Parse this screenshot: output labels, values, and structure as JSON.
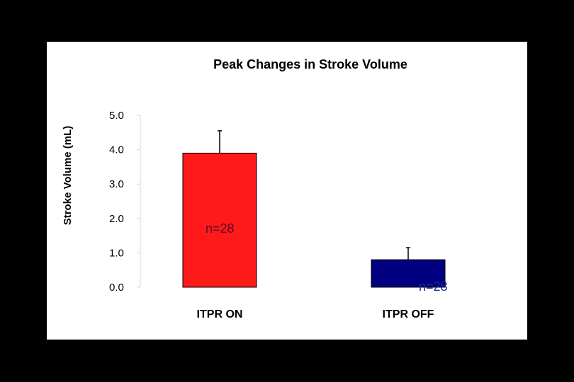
{
  "chart_data": {
    "type": "bar",
    "title": "Peak Changes in Stroke Volume",
    "xlabel": "",
    "ylabel": "Stroke Volume (mL)",
    "ylim": [
      0,
      5
    ],
    "yticks": [
      "0.0",
      "1.0",
      "2.0",
      "3.0",
      "4.0",
      "5.0"
    ],
    "categories": [
      "ITPR ON",
      "ITPR OFF"
    ],
    "values": [
      3.9,
      0.8
    ],
    "error": [
      0.65,
      0.35
    ],
    "annotations": [
      "n=28",
      "n=28"
    ],
    "colors": [
      "#ff1a1a",
      "#000080"
    ],
    "grid": false,
    "legend": "none"
  }
}
